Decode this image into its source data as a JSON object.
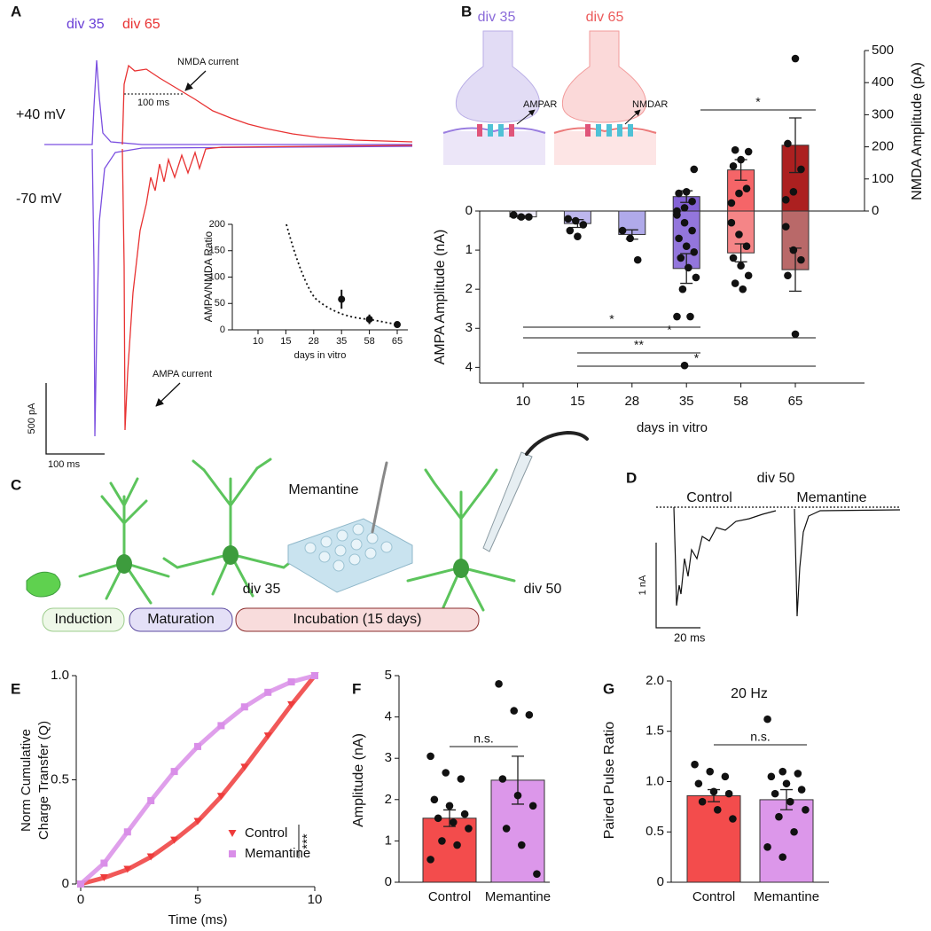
{
  "panel_labels": [
    "A",
    "B",
    "C",
    "D",
    "E",
    "F",
    "G"
  ],
  "panel_a": {
    "conditions": [
      "div 35",
      "div 65"
    ],
    "voltages": [
      "+40 mV",
      "-70 mV"
    ],
    "nmda_label": "NMDA current",
    "decay_label": "100 ms",
    "ampa_label": "AMPA current",
    "scale_current": "500 pA",
    "scale_time": "100 ms"
  },
  "panel_b_schematic": {
    "conditions": [
      "div 35",
      "div 65"
    ],
    "receptors": [
      "AMPAR",
      "NMDAR"
    ]
  },
  "panel_c": {
    "drug": "Memantine",
    "timepoints": [
      "div 35",
      "div 50"
    ],
    "stages": [
      "Induction",
      "Maturation",
      "Incubation (15 days)"
    ]
  },
  "panel_d": {
    "title": "div 50",
    "conditions": [
      "Control",
      "Memantine"
    ],
    "scale_current": "1 nA",
    "scale_time": "20 ms"
  },
  "chart_data": [
    {
      "type": "scatter",
      "y_label": "AMPA/NMDA Ratio",
      "x_label": "days in vitro",
      "categories": [
        "10",
        "15",
        "28",
        "35",
        "58",
        "65"
      ],
      "values": [
        null,
        null,
        null,
        58,
        20,
        10
      ],
      "errors": [
        null,
        null,
        null,
        18,
        9,
        null
      ],
      "color": "#111111",
      "ylim": [
        0,
        200
      ],
      "yticks": [
        0,
        50,
        100,
        150,
        200
      ]
    },
    {
      "type": "bar",
      "x_label": "days in vitro",
      "y_label": "AMPA  Amplitude (nA)",
      "y2_label": "NMDA  Amplitude (pA)",
      "categories": [
        "10",
        "15",
        "28",
        "35",
        "58",
        "65"
      ],
      "y_inverted": true,
      "ylim": [
        0,
        4.4
      ],
      "yticks": [
        0,
        1,
        2,
        3,
        4
      ],
      "y2lim": [
        0,
        500
      ],
      "y2ticks": [
        0,
        100,
        200,
        300,
        400,
        500
      ],
      "series": [
        {
          "axis": "y",
          "colors": [
            "#ece9f8",
            "#b7b1ec",
            "#a9a3e8",
            "#8a6ad9",
            "#f47b7d",
            "#b35c5c"
          ],
          "values": [
            0.15,
            0.32,
            0.6,
            1.47,
            1.07,
            1.5
          ],
          "errors": [
            0.03,
            0.1,
            0.12,
            0.38,
            0.23,
            0.55
          ],
          "points": [
            [
              0.1,
              0.15,
              0.15
            ],
            [
              0.2,
              0.25,
              0.35,
              0.5,
              0.65
            ],
            [
              0.5,
              0.7,
              1.25
            ],
            [
              0.1,
              0.3,
              0.5,
              0.7,
              0.9,
              1.05,
              1.2,
              1.45,
              1.7,
              2.0,
              2.7,
              2.7,
              3.95
            ],
            [
              0.3,
              0.6,
              0.9,
              1.2,
              1.4,
              1.65,
              1.85,
              2.0
            ],
            [
              0.4,
              1.0,
              1.25,
              1.65,
              3.15
            ]
          ]
        },
        {
          "axis": "y2",
          "colors": [
            "#ece9f8",
            "#b7b1ec",
            "#a9a3e8",
            "#7a55d2",
            "#f4585b",
            "#a50d0d"
          ],
          "values": [
            null,
            null,
            null,
            45,
            128,
            205
          ],
          "errors": [
            null,
            null,
            null,
            18,
            32,
            85
          ],
          "points": [
            [],
            [],
            [],
            [
              0,
              10,
              30,
              55,
              60,
              130
            ],
            [
              25,
              55,
              70,
              140,
              160,
              185,
              190
            ],
            [
              35,
              60,
              130,
              210,
              475
            ]
          ]
        }
      ],
      "annotations": [
        "*",
        "*",
        "*",
        "**",
        "*"
      ]
    },
    {
      "type": "line",
      "y_label": [
        "Norm Cumulative",
        "Charge Transfer (Q)"
      ],
      "x_label": "Time (ms)",
      "x": [
        0,
        1,
        2,
        3,
        4,
        5,
        6,
        7,
        8,
        9,
        10
      ],
      "xlim": [
        0,
        10
      ],
      "xticks": [
        0,
        5,
        10
      ],
      "ylim": [
        0,
        1
      ],
      "yticks": [
        0,
        0.5,
        {
          "value": 1,
          "label": "1.0"
        }
      ],
      "series": [
        {
          "name": "Control",
          "color": "#ee3b3b",
          "marker": "triangle",
          "values": [
            0,
            0.03,
            0.07,
            0.13,
            0.21,
            0.3,
            0.42,
            0.56,
            0.71,
            0.86,
            1.0
          ]
        },
        {
          "name": "Memantine",
          "color": "#d98ee8",
          "marker": "square",
          "values": [
            0,
            0.1,
            0.25,
            0.4,
            0.54,
            0.66,
            0.76,
            0.85,
            0.92,
            0.97,
            1.0
          ]
        }
      ],
      "annotation": "***"
    },
    {
      "type": "bar",
      "y_label": "Amplitude (nA)",
      "categories": [
        "Control",
        "Memantine"
      ],
      "ylim": [
        0,
        5
      ],
      "yticks": [
        0,
        1,
        2,
        3,
        4,
        5
      ],
      "series": [
        {
          "colors": [
            "#f23d3d",
            "#d98ee8"
          ],
          "values": [
            1.55,
            2.47
          ],
          "errors": [
            0.2,
            0.58
          ],
          "points": [
            [
              3.05,
              2.65,
              2.5,
              2.0,
              1.85,
              1.65,
              1.55,
              1.45,
              1.3,
              1.0,
              0.9,
              0.55
            ],
            [
              4.8,
              4.15,
              4.05,
              2.5,
              2.1,
              1.85,
              1.3,
              0.9,
              0.2
            ]
          ]
        }
      ],
      "annotation": "n.s."
    },
    {
      "type": "bar",
      "title": "20 Hz",
      "y_label": "Paired Pulse Ratio",
      "categories": [
        "Control",
        "Memantine"
      ],
      "ylim": [
        0,
        2
      ],
      "yticks": [
        0,
        0.5,
        {
          "value": 1,
          "label": "1.0"
        },
        1.5,
        {
          "value": 2,
          "label": "2.0"
        }
      ],
      "series": [
        {
          "colors": [
            "#f23d3d",
            "#d98ee8"
          ],
          "values": [
            0.86,
            0.82
          ],
          "errors": [
            0.06,
            0.1
          ],
          "points": [
            [
              1.17,
              1.1,
              1.05,
              0.98,
              0.9,
              0.88,
              0.8,
              0.72,
              0.63
            ],
            [
              1.62,
              1.1,
              1.08,
              1.05,
              0.98,
              0.92,
              0.88,
              0.8,
              0.72,
              0.65,
              0.5,
              0.35,
              0.25
            ]
          ]
        }
      ],
      "annotation": "n.s."
    }
  ]
}
